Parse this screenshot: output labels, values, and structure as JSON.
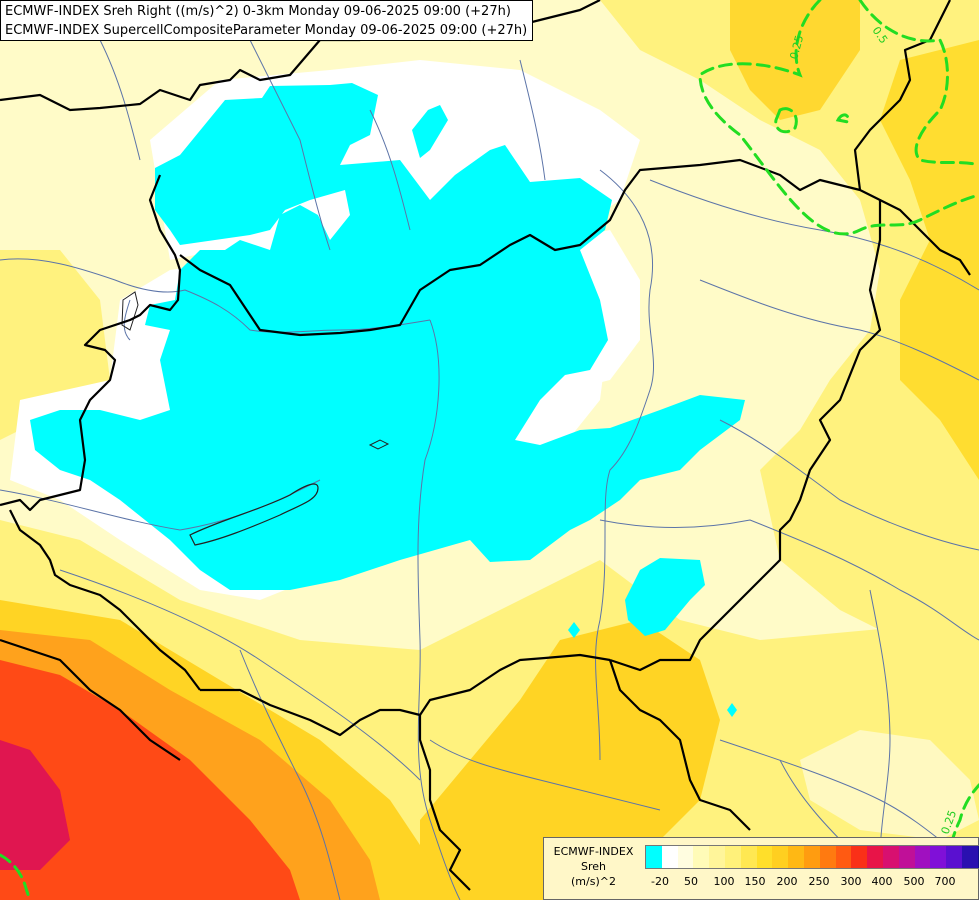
{
  "header": {
    "line1": "ECMWF-INDEX Sreh Right ((m/s)^2) 0-3km Monday 09-06-2025 09:00 (+27h)",
    "line2": "ECMWF-INDEX SupercellCompositeParameter Monday 09-06-2025 09:00 (+27h)"
  },
  "contour_labels": [
    "0.25",
    "0.5",
    "0.25"
  ],
  "legend": {
    "line1": "ECMWF-INDEX",
    "line2": "Sreh",
    "line3": "(m/s)^2",
    "swatches": [
      "#00ffff",
      "#ffffff",
      "#fffde0",
      "#fffbb8",
      "#fff59a",
      "#fff17a",
      "#ffe852",
      "#ffdf2a",
      "#ffcf20",
      "#ffb814",
      "#ff9c10",
      "#ff7a10",
      "#ff5a12",
      "#fa3018",
      "#e81448",
      "#d81070",
      "#c01098",
      "#a010c0",
      "#8010d8",
      "#5a10d0",
      "#2a10b0",
      "#10108a"
    ],
    "tick_labels": [
      "-20",
      "50",
      "100",
      "150",
      "200",
      "250",
      "300",
      "400",
      "500",
      "700"
    ]
  },
  "colors": {
    "light_cream": "#fffbc8",
    "yellow": "#fff07a",
    "deep_yellow": "#ffd820",
    "orange": "#ff9818",
    "red": "#ff3a18",
    "crimson": "#e81450",
    "cyan": "#00ffff",
    "contour_green": "#22dd22"
  }
}
